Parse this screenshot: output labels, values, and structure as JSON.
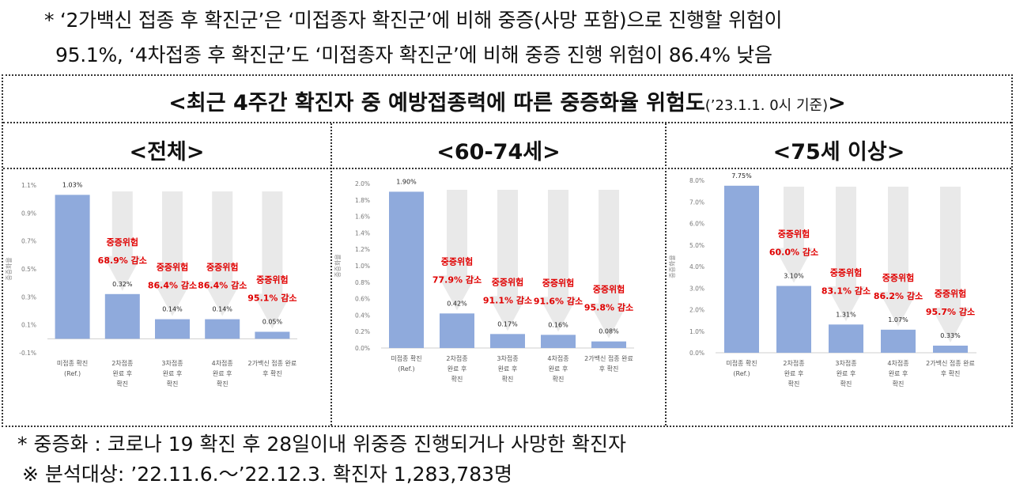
{
  "notes": {
    "line1": "* ‘2가백신 접종 후 확진군’은 ‘미접종자 확진군’에 비해 중증(사망 포함)으로 진행할 위험이",
    "line2": "95.1%, ‘4차접종 후 확진군’도 ‘미접종자 확진군’에 비해 중증 진행 위험이 86.4% 낮음"
  },
  "main_title": {
    "text": "<최근 4주간 확진자 중 예방접종력에 따른 중증화율 위험도",
    "sub": "(’23.1.1. 0시 기준)",
    "close": ">"
  },
  "footnotes": {
    "line1": "* 중증화 : 코로나 19 확진 후 28일이내 위중증 진행되거나 사망한 확진자",
    "line2": "※ 분석대상: ’22.11.6.～’22.12.3. 확진자 1,283,783명"
  },
  "colors": {
    "bar": "#8faadc",
    "arrow": "#e9e9e9",
    "risk_text": "#e00000"
  },
  "chart_data": [
    {
      "type": "bar",
      "title": "<전체>",
      "ylabel": "중증화율",
      "ylim": [
        -0.1,
        1.1
      ],
      "yticks": [
        "1.1%",
        "0.9%",
        "0.7%",
        "0.5%",
        "0.3%",
        "0.1%",
        "-0.1%"
      ],
      "ytick_values": [
        1.1,
        0.9,
        0.7,
        0.5,
        0.3,
        0.1,
        -0.1
      ],
      "categories": [
        [
          "미접종 확진",
          "(Ref.)"
        ],
        [
          "2차접종",
          "완료 후",
          "확진"
        ],
        [
          "3차접종",
          "완료 후",
          "확진"
        ],
        [
          "4차접종",
          "완료 후",
          "확진"
        ],
        [
          "2가백신 접종 완료",
          "후 확진"
        ]
      ],
      "values": [
        1.03,
        0.32,
        0.14,
        0.14,
        0.05
      ],
      "value_labels": [
        "1.03%",
        "0.32%",
        "0.14%",
        "0.14%",
        "0.05%"
      ],
      "risk_labels": [
        null,
        [
          "중증위험",
          "68.9% 감소"
        ],
        [
          "중증위험",
          "86.4% 감소"
        ],
        [
          "중증위험",
          "86.4% 감소"
        ],
        [
          "중증위험",
          "95.1% 감소"
        ]
      ]
    },
    {
      "type": "bar",
      "title": "<60-74세>",
      "ylabel": "중증화율",
      "ylim": [
        0,
        2.0
      ],
      "yticks": [
        "2.0%",
        "1.8%",
        "1.6%",
        "1.4%",
        "1.2%",
        "1.0%",
        "0.8%",
        "0.6%",
        "0.4%",
        "0.2%",
        "0.0%"
      ],
      "ytick_values": [
        2.0,
        1.8,
        1.6,
        1.4,
        1.2,
        1.0,
        0.8,
        0.6,
        0.4,
        0.2,
        0.0
      ],
      "categories": [
        [
          "미접종 확진",
          "(Ref.)"
        ],
        [
          "2차접종",
          "완료 후",
          "확진"
        ],
        [
          "3차접종",
          "완료 후",
          "확진"
        ],
        [
          "4차접종",
          "완료 후",
          "확진"
        ],
        [
          "2가백신 접종 완료",
          "후 확진"
        ]
      ],
      "values": [
        1.9,
        0.42,
        0.17,
        0.16,
        0.08
      ],
      "value_labels": [
        "1.90%",
        "0.42%",
        "0.17%",
        "0.16%",
        "0.08%"
      ],
      "risk_labels": [
        null,
        [
          "중증위험",
          "77.9% 감소"
        ],
        [
          "중증위험",
          "91.1% 감소"
        ],
        [
          "중증위험",
          "91.6% 감소"
        ],
        [
          "중증위험",
          "95.8% 감소"
        ]
      ]
    },
    {
      "type": "bar",
      "title": "<75세 이상>",
      "ylabel": "중증화율",
      "ylim": [
        0,
        8.0
      ],
      "yticks": [
        "8.0%",
        "7.0%",
        "6.0%",
        "5.0%",
        "4.0%",
        "3.0%",
        "2.0%",
        "1.0%",
        "0.0%"
      ],
      "ytick_values": [
        8.0,
        7.0,
        6.0,
        5.0,
        4.0,
        3.0,
        2.0,
        1.0,
        0.0
      ],
      "categories": [
        [
          "미접종 확진",
          "(Ref.)"
        ],
        [
          "2차접종",
          "완료 후",
          "확진"
        ],
        [
          "3차접종",
          "완료 후",
          "확진"
        ],
        [
          "4차접종",
          "완료 후",
          "확진"
        ],
        [
          "2가백신 접종 완료",
          "후 확진"
        ]
      ],
      "values": [
        7.75,
        3.1,
        1.31,
        1.07,
        0.33
      ],
      "value_labels": [
        "7.75%",
        "3.10%",
        "1.31%",
        "1.07%",
        "0.33%"
      ],
      "risk_labels": [
        null,
        [
          "중증위험",
          "60.0% 감소"
        ],
        [
          "중증위험",
          "83.1% 감소"
        ],
        [
          "중증위험",
          "86.2% 감소"
        ],
        [
          "중증위험",
          "95.7% 감소"
        ]
      ]
    }
  ]
}
